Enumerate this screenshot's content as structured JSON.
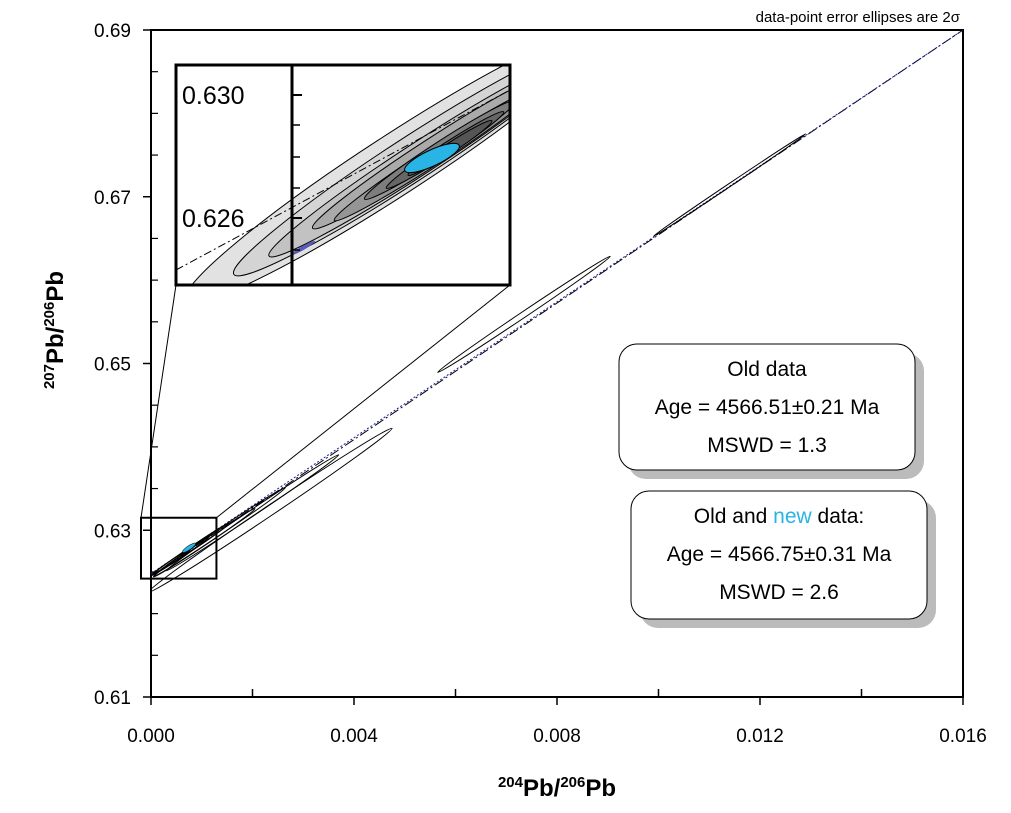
{
  "chart_data": {
    "type": "scatter",
    "subtype": "isochron-error-ellipses",
    "title": "",
    "note": "data-point error ellipses are 2σ",
    "xlabel": {
      "iso_top": "204",
      "sym_top": "Pb",
      "slash": "/",
      "iso_bottom": "206",
      "sym_bottom": "Pb"
    },
    "ylabel": {
      "iso_top": "207",
      "sym_top": "Pb",
      "slash": "/",
      "iso_bottom": "206",
      "sym_bottom": "Pb"
    },
    "xlim": [
      0.0,
      0.016
    ],
    "ylim": [
      0.61,
      0.69
    ],
    "xticks": [
      {
        "value": 0.0,
        "label": "0.000"
      },
      {
        "value": 0.004,
        "label": "0.004"
      },
      {
        "value": 0.008,
        "label": "0.008"
      },
      {
        "value": 0.012,
        "label": "0.012"
      },
      {
        "value": 0.016,
        "label": "0.016"
      }
    ],
    "xminor": [
      0.002,
      0.006,
      0.01,
      0.014
    ],
    "yticks": [
      {
        "value": 0.61,
        "label": "0.61"
      },
      {
        "value": 0.63,
        "label": "0.63"
      },
      {
        "value": 0.65,
        "label": "0.65"
      },
      {
        "value": 0.67,
        "label": "0.67"
      },
      {
        "value": 0.69,
        "label": "0.69"
      }
    ],
    "yminor": [
      0.615,
      0.62,
      0.625,
      0.635,
      0.64,
      0.645,
      0.655,
      0.66,
      0.665,
      0.675,
      0.68,
      0.685
    ],
    "regression_lines": [
      {
        "name": "old",
        "x": [
          0.0,
          0.016
        ],
        "y": [
          0.6245,
          0.69
        ],
        "style": "dash-dot",
        "color": "#000000"
      },
      {
        "name": "old+new",
        "x": [
          0.0,
          0.016
        ],
        "y": [
          0.6248,
          0.69
        ],
        "style": "dotted",
        "color": "#1a1aa0"
      }
    ],
    "ellipses": [
      {
        "cx": 0.0114,
        "cy": 0.6714,
        "rx": 0.0015,
        "ry": 0.00017,
        "fill": "none"
      },
      {
        "cx": 0.00735,
        "cy": 0.6559,
        "rx": 0.0017,
        "ry": 0.00035,
        "fill": "none"
      },
      {
        "cx": 0.00235,
        "cy": 0.6324,
        "rx": 0.0024,
        "ry": 0.0006,
        "fill": "none"
      },
      {
        "cx": 0.002,
        "cy": 0.6321,
        "rx": 0.0017,
        "ry": 0.00038,
        "fill": "none"
      },
      {
        "cx": 0.00135,
        "cy": 0.6298,
        "rx": 0.0013,
        "ry": 0.00035,
        "fill": "none"
      },
      {
        "cx": 0.00105,
        "cy": 0.6285,
        "rx": 0.001,
        "ry": 0.0003,
        "fill": "none"
      },
      {
        "cx": 0.0008,
        "cy": 0.6278,
        "rx": 0.00075,
        "ry": 0.00024,
        "fill": "none"
      },
      {
        "cx": 0.0006,
        "cy": 0.627,
        "rx": 0.00055,
        "ry": 0.0002,
        "fill": "none"
      },
      {
        "cx": 0.0004,
        "cy": 0.6262,
        "rx": 0.0004,
        "ry": 0.00016,
        "fill": "none"
      }
    ],
    "highlight_ellipse": {
      "cx": 0.00075,
      "cy": 0.6279,
      "rx": 0.00012,
      "ry": 6e-05,
      "fill": "#29b4e6"
    },
    "inset": {
      "source_region": {
        "x": [
          0.0,
          0.00125
        ],
        "y": [
          0.6242,
          0.6315
        ]
      },
      "y_ticks": [
        {
          "value": 0.63,
          "label": "0.630"
        },
        {
          "value": 0.626,
          "label": "0.626"
        }
      ]
    },
    "result_boxes": [
      {
        "name": "old",
        "title": "Old data",
        "age": "Age = 4566.51±0.21 Ma",
        "mswd": "MSWD = 1.3"
      },
      {
        "name": "old-and-new",
        "title_pre": "Old and ",
        "title_new": "new",
        "title_post": " data:",
        "new_color": "#29b4e6",
        "age": "Age = 4566.75±0.31 Ma",
        "mswd": "MSWD = 2.6"
      }
    ]
  }
}
